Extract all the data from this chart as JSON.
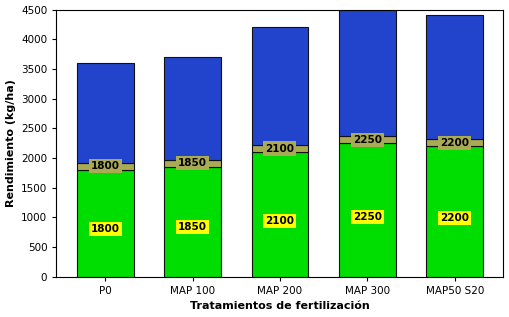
{
  "categories": [
    "P0",
    "MAP 100",
    "MAP 200",
    "MAP 300",
    "MAP50 S20"
  ],
  "green_values": [
    1800,
    1850,
    2100,
    2250,
    2200
  ],
  "olive_values": [
    120,
    120,
    120,
    120,
    120
  ],
  "blue_values": [
    1680,
    1730,
    1980,
    2130,
    2080
  ],
  "green_labels": [
    1800,
    1850,
    2100,
    2250,
    2200
  ],
  "olive_labels": [
    1800,
    1850,
    2100,
    2250,
    2200
  ],
  "green_color": "#00DD00",
  "olive_color": "#AAAA55",
  "blue_color": "#2244CC",
  "yellow_label_color": "#FFFF00",
  "xlabel": "Tratamientos de fertilización",
  "ylabel": "Rendimiento (kg/ha)",
  "ylim": [
    0,
    4500
  ],
  "yticks": [
    0,
    500,
    1000,
    1500,
    2000,
    2500,
    3000,
    3500,
    4000,
    4500
  ],
  "bar_width": 0.65,
  "bar_edge_color": "#111111",
  "bar_edge_width": 0.8,
  "fig_bg_color": "#FFFFFF",
  "axes_bg_color": "#FFFFFF",
  "label_fontsize": 7.5,
  "axis_label_fontsize": 8,
  "tick_fontsize": 7.5
}
